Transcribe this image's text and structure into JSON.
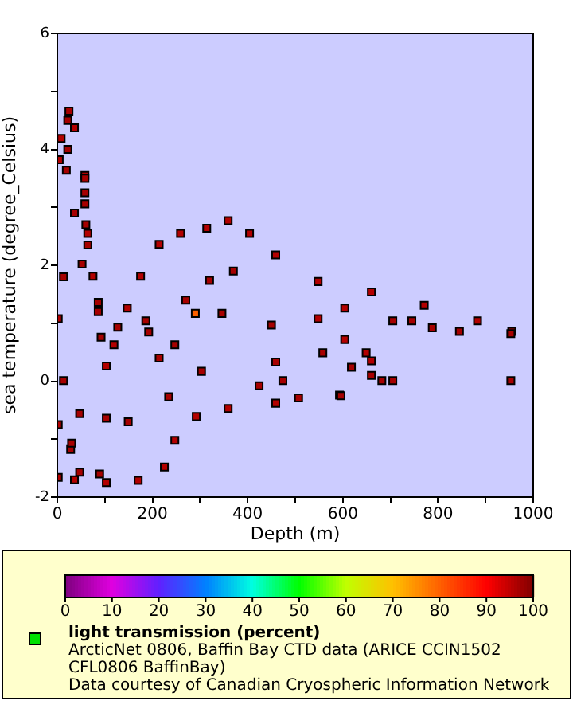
{
  "chart_data": {
    "type": "scatter",
    "xlabel": "Depth (m)",
    "ylabel": "sea temperature (degree_Celsius)",
    "clabel": "light transmission (percent)",
    "marker": "square",
    "annotations": [
      "ArcticNet 0806, Baffin Bay CTD data (ARICE CCIN1502 CFL0806 BaffinBay)",
      "Data courtesy of Canadian Cryospheric Information Network"
    ],
    "xlim": [
      0,
      1000
    ],
    "ylim": [
      -2,
      6
    ],
    "xticks": [
      0,
      {
        "value": 100,
        "label": null
      },
      200,
      {
        "value": 300,
        "label": null
      },
      400,
      {
        "value": 500,
        "label": null
      },
      600,
      {
        "value": 700,
        "label": null
      },
      800,
      {
        "value": 900,
        "label": null
      },
      1000
    ],
    "yticks": [
      -2,
      {
        "value": -1,
        "label": null
      },
      0,
      {
        "value": 1,
        "label": null
      },
      2,
      {
        "value": 3,
        "label": null
      },
      4,
      {
        "value": 5,
        "label": null
      },
      6
    ],
    "clim": [
      0,
      100
    ],
    "cticks": [
      0,
      10,
      20,
      30,
      40,
      50,
      60,
      70,
      80,
      90,
      100
    ],
    "x": [
      2,
      2,
      2,
      4,
      8,
      36,
      58,
      64,
      75,
      103,
      119,
      147,
      175,
      214,
      259,
      314,
      359,
      404,
      459,
      548,
      660,
      771,
      883,
      955,
      36,
      103,
      170,
      225,
      247,
      292,
      359,
      459,
      593,
      660,
      649,
      604,
      548,
      604,
      24.5,
      22,
      22,
      58,
      58,
      58,
      19,
      36,
      60,
      64,
      52,
      13,
      86,
      86,
      92,
      13,
      127,
      186,
      192,
      270,
      320,
      370,
      346,
      450,
      705,
      745,
      788,
      845,
      953,
      953,
      705,
      682,
      660,
      618,
      558,
      459,
      474,
      424,
      507,
      596,
      234,
      149,
      103,
      47,
      28,
      30,
      89,
      47,
      214,
      247,
      303,
      290
    ],
    "values": [
      -1.66,
      -0.75,
      1.08,
      3.82,
      4.19,
      4.37,
      3.55,
      2.55,
      1.81,
      0.26,
      0.63,
      1.26,
      1.81,
      2.36,
      2.55,
      2.64,
      2.77,
      2.55,
      2.18,
      1.72,
      1.54,
      1.31,
      1.04,
      0.86,
      -1.7,
      -1.75,
      -1.71,
      -1.48,
      -1.02,
      -0.61,
      -0.47,
      -0.38,
      -0.24,
      0.35,
      0.49,
      0.72,
      1.08,
      1.26,
      4.66,
      4.5,
      4.0,
      3.5,
      3.25,
      3.06,
      3.64,
      2.9,
      2.7,
      2.35,
      2.02,
      1.8,
      1.36,
      1.2,
      0.76,
      0.01,
      0.93,
      1.04,
      0.85,
      1.4,
      1.74,
      1.9,
      1.17,
      0.97,
      1.04,
      1.04,
      0.92,
      0.86,
      0.82,
      0.01,
      0.01,
      0.01,
      0.1,
      0.24,
      0.49,
      0.33,
      0.01,
      -0.08,
      -0.29,
      -0.25,
      -0.27,
      -0.7,
      -0.64,
      -0.56,
      -1.18,
      -1.07,
      -1.6,
      -1.57,
      0.4,
      0.63,
      0.17,
      1.17
    ],
    "cvalues": [
      96,
      96,
      96,
      96,
      96,
      96,
      96,
      96,
      96,
      96,
      96,
      96,
      96,
      96,
      96,
      96,
      96,
      96,
      96,
      96,
      96,
      96,
      96,
      96,
      96,
      96,
      96,
      96,
      96,
      96,
      96,
      96,
      96,
      96,
      96,
      96,
      96,
      96,
      97,
      97,
      97,
      97,
      97,
      97,
      97,
      97,
      97,
      97,
      97,
      97,
      97,
      97,
      97,
      97,
      97,
      97,
      97,
      97,
      97,
      97,
      97,
      97,
      97,
      97,
      97,
      97,
      97,
      97,
      97,
      97,
      97,
      97,
      97,
      97,
      97,
      97,
      97,
      97,
      97,
      97,
      97,
      97,
      97,
      97,
      97,
      97,
      97,
      97,
      97,
      80
    ]
  }
}
